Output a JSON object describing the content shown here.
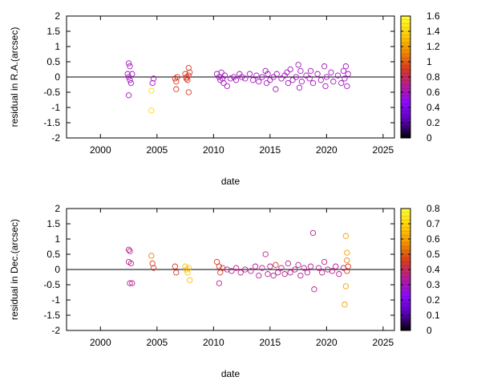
{
  "chart_data": [
    {
      "type": "scatter",
      "title": "",
      "xlabel": "date",
      "ylabel": "residual in R.A.(arcsec)",
      "xlim": [
        1997,
        2026
      ],
      "ylim": [
        -2,
        2
      ],
      "xticks": [
        "2000",
        "2005",
        "2010",
        "2015",
        "2020",
        "2025"
      ],
      "yticks": [
        "-2",
        "-1.5",
        "-1",
        "-0.5",
        "0",
        "0.5",
        "1",
        "1.5",
        "2"
      ],
      "grid": false,
      "marker": "open-circle",
      "reference_line_y": 0,
      "colorbar": {
        "range": [
          0,
          1.6
        ],
        "ticks": [
          "0",
          "0.2",
          "0.4",
          "0.6",
          "0.8",
          "1",
          "1.2",
          "1.4",
          "1.6"
        ],
        "palette": [
          "#000000",
          "#5a00b8",
          "#8b0aff",
          "#b51c9a",
          "#d93b1f",
          "#f29000",
          "#ffd10a",
          "#ffff30"
        ]
      },
      "points": [
        [
          2002.5,
          0.45,
          0.6
        ],
        [
          2002.6,
          0.35,
          0.6
        ],
        [
          2002.4,
          0.1,
          0.6
        ],
        [
          2002.5,
          0.0,
          0.6
        ],
        [
          2002.6,
          -0.1,
          0.6
        ],
        [
          2002.8,
          0.1,
          0.6
        ],
        [
          2002.7,
          -0.2,
          0.6
        ],
        [
          2002.5,
          -0.6,
          0.6
        ],
        [
          2004.5,
          -0.45,
          1.4
        ],
        [
          2004.5,
          -1.1,
          1.4
        ],
        [
          2004.7,
          -0.05,
          0.6
        ],
        [
          2004.6,
          -0.2,
          0.6
        ],
        [
          2006.6,
          -0.05,
          0.9
        ],
        [
          2006.8,
          0.0,
          0.9
        ],
        [
          2006.7,
          -0.15,
          0.9
        ],
        [
          2006.7,
          -0.4,
          0.9
        ],
        [
          2007.5,
          0.1,
          0.9
        ],
        [
          2007.6,
          0.0,
          0.9
        ],
        [
          2007.7,
          -0.1,
          0.9
        ],
        [
          2007.8,
          0.05,
          0.9
        ],
        [
          2007.8,
          0.3,
          0.9
        ],
        [
          2007.9,
          0.15,
          0.9
        ],
        [
          2007.6,
          -0.05,
          0.9
        ],
        [
          2007.8,
          -0.5,
          0.9
        ],
        [
          2010.3,
          0.1,
          0.6
        ],
        [
          2010.5,
          0.0,
          0.6
        ],
        [
          2010.6,
          -0.1,
          0.6
        ],
        [
          2010.7,
          0.15,
          0.6
        ],
        [
          2010.8,
          -0.05,
          0.6
        ],
        [
          2010.9,
          -0.2,
          0.6
        ],
        [
          2011.0,
          0.05,
          0.6
        ],
        [
          2011.2,
          -0.3,
          0.6
        ],
        [
          2011.5,
          -0.05,
          0.6
        ],
        [
          2011.8,
          0.0,
          0.6
        ],
        [
          2012.0,
          -0.1,
          0.6
        ],
        [
          2012.3,
          0.1,
          0.6
        ],
        [
          2012.5,
          0.0,
          0.6
        ],
        [
          2012.8,
          -0.05,
          0.6
        ],
        [
          2013.2,
          0.1,
          0.6
        ],
        [
          2013.5,
          -0.1,
          0.6
        ],
        [
          2013.8,
          0.05,
          0.6
        ],
        [
          2014.0,
          -0.15,
          0.6
        ],
        [
          2014.3,
          0.0,
          0.6
        ],
        [
          2014.6,
          0.2,
          0.6
        ],
        [
          2014.7,
          -0.2,
          0.6
        ],
        [
          2014.8,
          0.1,
          0.6
        ],
        [
          2015.0,
          -0.1,
          0.6
        ],
        [
          2015.3,
          0.0,
          0.6
        ],
        [
          2015.5,
          -0.4,
          0.6
        ],
        [
          2015.6,
          0.1,
          0.6
        ],
        [
          2016.0,
          -0.05,
          0.6
        ],
        [
          2016.3,
          0.05,
          0.6
        ],
        [
          2016.5,
          0.15,
          0.6
        ],
        [
          2016.6,
          -0.2,
          0.6
        ],
        [
          2016.8,
          0.25,
          0.6
        ],
        [
          2017.0,
          -0.1,
          0.6
        ],
        [
          2017.3,
          0.0,
          0.6
        ],
        [
          2017.5,
          0.4,
          0.6
        ],
        [
          2017.6,
          -0.35,
          0.6
        ],
        [
          2017.7,
          0.2,
          0.6
        ],
        [
          2017.8,
          -0.15,
          0.6
        ],
        [
          2018.2,
          0.05,
          0.6
        ],
        [
          2018.5,
          -0.05,
          0.6
        ],
        [
          2018.6,
          0.2,
          0.6
        ],
        [
          2018.8,
          -0.2,
          0.6
        ],
        [
          2019.2,
          0.1,
          0.6
        ],
        [
          2019.5,
          -0.1,
          0.6
        ],
        [
          2019.8,
          0.35,
          0.6
        ],
        [
          2019.9,
          -0.3,
          0.6
        ],
        [
          2020.0,
          0.0,
          0.6
        ],
        [
          2020.4,
          0.15,
          0.6
        ],
        [
          2020.6,
          -0.15,
          0.6
        ],
        [
          2021.0,
          0.05,
          0.6
        ],
        [
          2021.3,
          -0.2,
          0.6
        ],
        [
          2021.5,
          0.2,
          0.6
        ],
        [
          2021.6,
          -0.05,
          0.6
        ],
        [
          2021.7,
          0.35,
          0.6
        ],
        [
          2021.8,
          -0.3,
          0.6
        ],
        [
          2021.9,
          0.1,
          0.6
        ]
      ]
    },
    {
      "type": "scatter",
      "title": "",
      "xlabel": "date",
      "ylabel": "residual in Dec.(arcsec)",
      "xlim": [
        1997,
        2026
      ],
      "ylim": [
        -2,
        2
      ],
      "xticks": [
        "2000",
        "2005",
        "2010",
        "2015",
        "2020",
        "2025"
      ],
      "yticks": [
        "-2",
        "-1.5",
        "-1",
        "-0.5",
        "0",
        "0.5",
        "1",
        "1.5",
        "2"
      ],
      "grid": false,
      "marker": "open-circle",
      "reference_line_y": 0,
      "colorbar": {
        "range": [
          0,
          0.8
        ],
        "ticks": [
          "0",
          "0.1",
          "0.2",
          "0.3",
          "0.4",
          "0.5",
          "0.6",
          "0.7",
          "0.8"
        ],
        "palette": [
          "#000000",
          "#5a00b8",
          "#8b0aff",
          "#b51c9a",
          "#d93b1f",
          "#f29000",
          "#ffd10a",
          "#ffff30"
        ]
      },
      "points": [
        [
          2002.5,
          0.65,
          0.35
        ],
        [
          2002.6,
          0.6,
          0.35
        ],
        [
          2002.5,
          0.25,
          0.35
        ],
        [
          2002.7,
          0.2,
          0.35
        ],
        [
          2002.6,
          -0.45,
          0.35
        ],
        [
          2002.8,
          -0.45,
          0.35
        ],
        [
          2004.5,
          0.45,
          0.55
        ],
        [
          2004.6,
          0.2,
          0.45
        ],
        [
          2004.7,
          0.05,
          0.45
        ],
        [
          2006.6,
          0.1,
          0.45
        ],
        [
          2006.7,
          -0.1,
          0.45
        ],
        [
          2007.5,
          0.1,
          0.65
        ],
        [
          2007.6,
          0.0,
          0.65
        ],
        [
          2007.7,
          -0.1,
          0.65
        ],
        [
          2007.8,
          0.05,
          0.65
        ],
        [
          2007.9,
          -0.35,
          0.65
        ],
        [
          2010.3,
          0.25,
          0.45
        ],
        [
          2010.5,
          0.1,
          0.45
        ],
        [
          2010.6,
          -0.1,
          0.45
        ],
        [
          2010.5,
          -0.45,
          0.35
        ],
        [
          2010.8,
          0.05,
          0.45
        ],
        [
          2011.2,
          0.0,
          0.35
        ],
        [
          2011.6,
          -0.05,
          0.35
        ],
        [
          2012.0,
          0.05,
          0.35
        ],
        [
          2012.4,
          -0.1,
          0.35
        ],
        [
          2012.8,
          0.0,
          0.35
        ],
        [
          2013.3,
          -0.05,
          0.35
        ],
        [
          2013.7,
          0.1,
          0.35
        ],
        [
          2014.0,
          -0.2,
          0.35
        ],
        [
          2014.3,
          0.05,
          0.35
        ],
        [
          2014.6,
          0.5,
          0.35
        ],
        [
          2014.8,
          -0.15,
          0.35
        ],
        [
          2015.0,
          0.1,
          0.35
        ],
        [
          2015.3,
          -0.2,
          0.35
        ],
        [
          2015.5,
          0.15,
          0.45
        ],
        [
          2015.7,
          -0.1,
          0.35
        ],
        [
          2016.0,
          0.05,
          0.35
        ],
        [
          2016.3,
          -0.15,
          0.35
        ],
        [
          2016.6,
          0.2,
          0.35
        ],
        [
          2016.8,
          -0.1,
          0.35
        ],
        [
          2017.2,
          0.0,
          0.35
        ],
        [
          2017.5,
          0.15,
          0.35
        ],
        [
          2017.7,
          -0.2,
          0.35
        ],
        [
          2018.0,
          0.05,
          0.35
        ],
        [
          2018.3,
          -0.1,
          0.35
        ],
        [
          2018.6,
          0.1,
          0.35
        ],
        [
          2018.8,
          1.2,
          0.35
        ],
        [
          2018.9,
          -0.65,
          0.35
        ],
        [
          2019.3,
          0.05,
          0.35
        ],
        [
          2019.6,
          -0.1,
          0.35
        ],
        [
          2019.8,
          0.25,
          0.35
        ],
        [
          2020.1,
          0.0,
          0.35
        ],
        [
          2020.5,
          -0.05,
          0.35
        ],
        [
          2020.8,
          0.1,
          0.35
        ],
        [
          2021.1,
          -0.15,
          0.35
        ],
        [
          2021.5,
          0.05,
          0.35
        ],
        [
          2021.7,
          1.1,
          0.6
        ],
        [
          2021.8,
          0.55,
          0.6
        ],
        [
          2021.8,
          0.3,
          0.55
        ],
        [
          2021.7,
          -0.55,
          0.6
        ],
        [
          2021.6,
          -1.15,
          0.6
        ],
        [
          2021.9,
          0.1,
          0.45
        ],
        [
          2021.8,
          -0.05,
          0.45
        ]
      ]
    }
  ]
}
